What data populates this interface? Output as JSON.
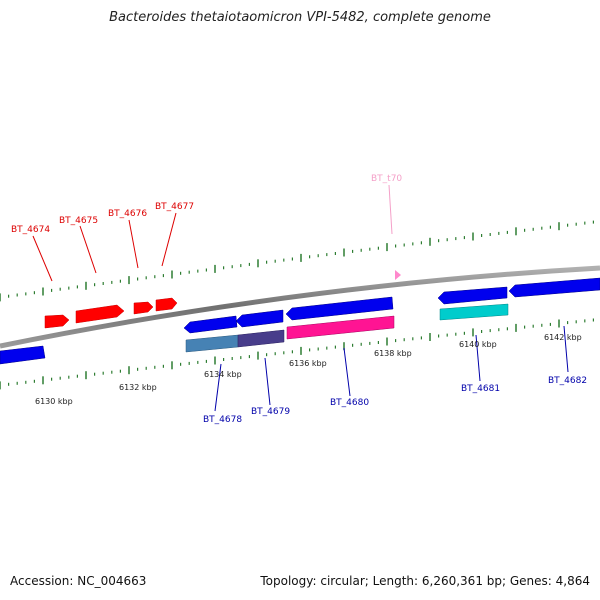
{
  "title": "Bacteroides thetaiotaomicron VPI-5482, complete genome",
  "footer": {
    "accession": "Accession: NC_004663",
    "summary": "Topology: circular; Length: 6,260,361 bp; Genes: 4,864"
  },
  "scale_labels": [
    "6130 kbp",
    "6132 kbp",
    "6134 kbp",
    "6136 kbp",
    "6138 kbp",
    "6140 kbp",
    "6142 kbp"
  ],
  "gene_labels": [
    {
      "name": "BT_4674",
      "color": "#dd0000"
    },
    {
      "name": "BT_4675",
      "color": "#dd0000"
    },
    {
      "name": "BT_4676",
      "color": "#dd0000"
    },
    {
      "name": "BT_4677",
      "color": "#dd0000"
    },
    {
      "name": "BT_t70",
      "color": "#f4a0c8"
    },
    {
      "name": "BT_4678",
      "color": "#0000aa"
    },
    {
      "name": "BT_4679",
      "color": "#0000aa"
    },
    {
      "name": "BT_4680",
      "color": "#0000aa"
    },
    {
      "name": "BT_4681",
      "color": "#0000aa"
    },
    {
      "name": "BT_4682",
      "color": "#0000aa"
    }
  ],
  "colors": {
    "backbone": "#808080",
    "tick": "#2e7d32",
    "forward_gene": "#ff0000",
    "reverse_gene": "#0000ee",
    "cog_steel": "#4682b4",
    "cog_purple": "#483d8b",
    "cog_magenta": "#ff1493",
    "cog_cyan": "#00cccc",
    "trna": "#ff88cc"
  }
}
